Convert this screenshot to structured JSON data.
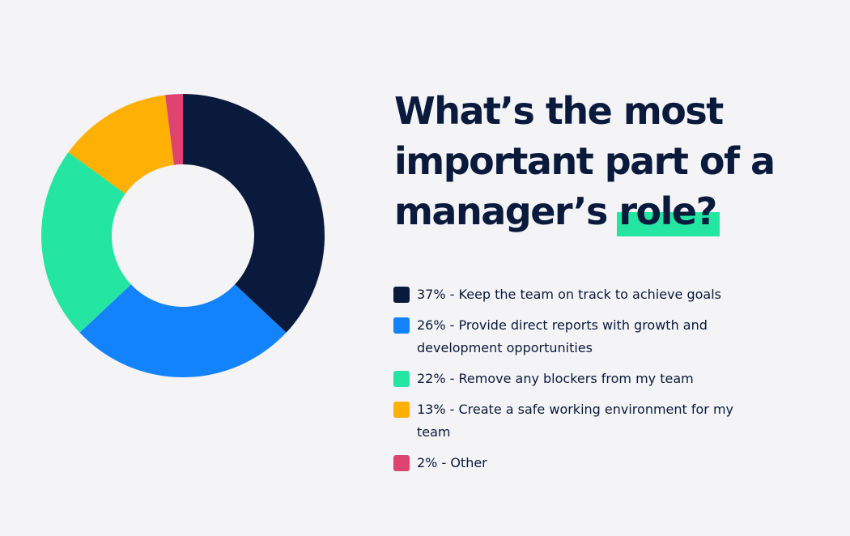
{
  "title": {
    "line1": "What’s the most",
    "line2": "important part of a",
    "line3_prefix": "manager’s",
    "line3_highlight": "role?"
  },
  "chart_data": {
    "type": "pie",
    "style": "donut",
    "title": "What’s the most important part of a manager’s role?",
    "legend_position": "right",
    "slices": [
      {
        "label": "Keep the team on track to achieve goals",
        "value": 37,
        "color": "#0a1a3c",
        "legend_text": "37% - Keep the team on track to achieve goals"
      },
      {
        "label": "Provide direct reports with growth and development opportunities",
        "value": 26,
        "color": "#1283fb",
        "legend_text": "26% - Provide direct reports with growth and development opportunities"
      },
      {
        "label": "Remove any blockers from my team",
        "value": 22,
        "color": "#24e6a2",
        "legend_text": "22% - Remove any blockers from my team"
      },
      {
        "label": "Create a safe working environment for my team",
        "value": 13,
        "color": "#ffb004",
        "legend_text": "13% - Create a safe working environment for my team"
      },
      {
        "label": "Other",
        "value": 2,
        "color": "#dd4570",
        "legend_text": "2% - Other"
      }
    ]
  }
}
